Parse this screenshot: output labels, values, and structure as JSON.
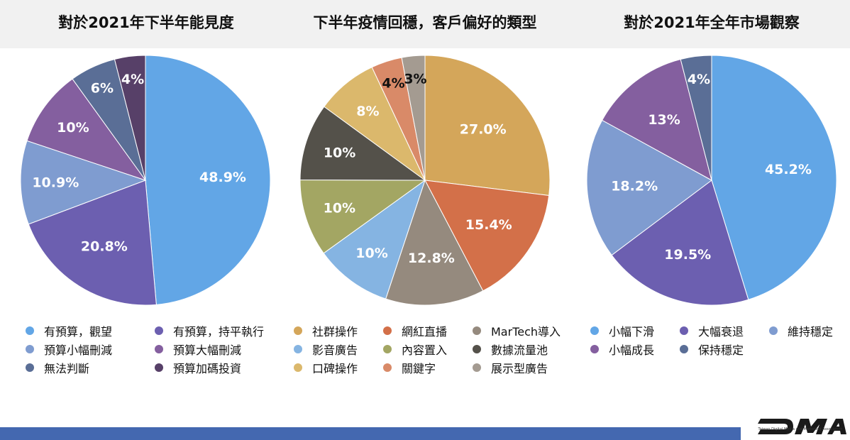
{
  "chart_data": [
    {
      "type": "pie",
      "title": "對於2021年下半年能見度",
      "slices": [
        {
          "label": "有預算，觀望",
          "value": 48.9,
          "display": "48.9%",
          "color": "#62a6e6"
        },
        {
          "label": "有預算，持平執行",
          "value": 20.8,
          "display": "20.8%",
          "color": "#6c5fb0"
        },
        {
          "label": "預算小幅刪減",
          "value": 10.9,
          "display": "10.9%",
          "color": "#7f9cd0"
        },
        {
          "label": "預算大幅刪減",
          "value": 10,
          "display": "10%",
          "color": "#845f9f"
        },
        {
          "label": "無法判斷",
          "value": 6,
          "display": "6%",
          "color": "#5a6e96"
        },
        {
          "label": "預算加碼投資",
          "value": 4,
          "display": "4%",
          "color": "#574068"
        }
      ]
    },
    {
      "type": "pie",
      "title": "下半年疫情回穩，客戶偏好的類型",
      "slices": [
        {
          "label": "社群操作",
          "value": 27.0,
          "display": "27.0%",
          "color": "#d4a65a"
        },
        {
          "label": "網紅直播",
          "value": 15.4,
          "display": "15.4%",
          "color": "#d37049"
        },
        {
          "label": "MarTech導入",
          "value": 12.8,
          "display": "12.8%",
          "color": "#958a7e"
        },
        {
          "label": "影音廣告",
          "value": 10,
          "display": "10%",
          "color": "#85b4e2"
        },
        {
          "label": "內容置入",
          "value": 10,
          "display": "10%",
          "color": "#a3a663"
        },
        {
          "label": "數據流量池",
          "value": 10,
          "display": "10%",
          "color": "#54514a"
        },
        {
          "label": "口碑操作",
          "value": 8,
          "display": "8%",
          "color": "#dbb86c"
        },
        {
          "label": "關鍵字",
          "value": 4,
          "display": "4%",
          "color": "#d98a68"
        },
        {
          "label": "展示型廣告",
          "value": 3,
          "display": "3%",
          "color": "#a49b91"
        }
      ]
    },
    {
      "type": "pie",
      "title": "對於2021年全年市場觀察",
      "slices": [
        {
          "label": "小幅下滑",
          "value": 45.2,
          "display": "45.2%",
          "color": "#62a6e6"
        },
        {
          "label": "大幅衰退",
          "value": 19.5,
          "display": "19.5%",
          "color": "#6c5fb0"
        },
        {
          "label": "維持穩定",
          "value": 18.2,
          "display": "18.2%",
          "color": "#7f9cd0"
        },
        {
          "label": "小幅成長",
          "value": 13,
          "display": "13%",
          "color": "#845f9f"
        },
        {
          "label": "保持穩定",
          "value": 4,
          "display": "4%",
          "color": "#5a6e96"
        }
      ]
    }
  ],
  "brand": {
    "logo_alt": "dma",
    "tagline": "Taiwan Digital Media and Marketing Association"
  }
}
